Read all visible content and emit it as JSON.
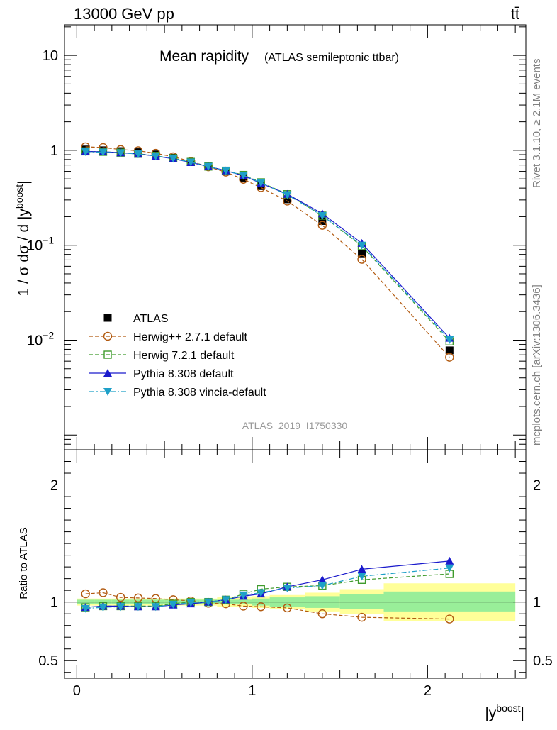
{
  "header": {
    "left": "13000 GeV pp",
    "right": "tt̄"
  },
  "side": {
    "rivet": "Rivet 3.1.10, ≥ 2.1M events",
    "mcplots": "mcplots.cern.ch [arXiv:1306.3436]"
  },
  "chart_data": [
    {
      "type": "line",
      "title": "Mean rapidity",
      "subtitle": "(ATLAS semileptonic ttbar)",
      "ylabel": "1 / σ dσ / d |y^boost|",
      "xlabel": "",
      "yscale": "log",
      "xlim": [
        -0.07,
        2.56
      ],
      "ylim": [
        0.0007,
        21
      ],
      "y_tick_labels": [
        "10",
        "1",
        "10^-1",
        "10^-2"
      ],
      "watermark": "ATLAS_2019_I1750330",
      "legend_position": "bottom-left",
      "x": [
        0.05,
        0.15,
        0.25,
        0.35,
        0.45,
        0.55,
        0.65,
        0.75,
        0.85,
        0.95,
        1.05,
        1.2,
        1.4,
        1.625,
        2.125
      ],
      "series": [
        {
          "name": "ATLAS",
          "color": "#000000",
          "marker": "square-filled",
          "line": "none",
          "values": [
            1.02,
            1.0,
            0.98,
            0.955,
            0.905,
            0.835,
            0.755,
            0.675,
            0.6,
            0.515,
            0.42,
            0.305,
            0.18,
            0.082,
            0.0078
          ]
        },
        {
          "name": "Herwig++ 2.7.1 default",
          "color": "#b25a10",
          "marker": "circle-open",
          "line": "dashed",
          "values": [
            1.09,
            1.07,
            1.02,
            0.99,
            0.93,
            0.855,
            0.765,
            0.67,
            0.59,
            0.495,
            0.405,
            0.292,
            0.162,
            0.071,
            0.0066
          ]
        },
        {
          "name": "Herwig 7.2.1 default",
          "color": "#3f9b2c",
          "marker": "square-open",
          "line": "dashed",
          "values": [
            0.975,
            0.965,
            0.945,
            0.92,
            0.875,
            0.825,
            0.755,
            0.675,
            0.61,
            0.55,
            0.46,
            0.345,
            0.205,
            0.098,
            0.0097
          ]
        },
        {
          "name": "Pythia 8.308 default",
          "color": "#1a1acc",
          "marker": "triangle-up-filled",
          "line": "solid",
          "values": [
            0.975,
            0.965,
            0.945,
            0.915,
            0.87,
            0.815,
            0.745,
            0.675,
            0.61,
            0.54,
            0.45,
            0.345,
            0.215,
            0.105,
            0.0105
          ]
        },
        {
          "name": "Pythia 8.308 vincia-default",
          "color": "#1ea0c8",
          "marker": "triangle-down-filled",
          "line": "dashdot",
          "values": [
            0.965,
            0.955,
            0.94,
            0.915,
            0.87,
            0.82,
            0.75,
            0.675,
            0.61,
            0.545,
            0.455,
            0.34,
            0.205,
            0.1,
            0.0101
          ]
        }
      ]
    },
    {
      "type": "line",
      "title": "",
      "ylabel": "Ratio to ATLAS",
      "xlabel": "|y^boost|",
      "xlim": [
        -0.07,
        2.56
      ],
      "ylim": [
        0.35,
        2.3
      ],
      "x_tick_labels": [
        "0",
        "1",
        "2"
      ],
      "y_tick_labels": [
        "2",
        "1",
        "0.5"
      ],
      "reference_line": 1,
      "bins": [
        [
          0.0,
          0.1
        ],
        [
          0.1,
          0.2
        ],
        [
          0.2,
          0.3
        ],
        [
          0.3,
          0.4
        ],
        [
          0.4,
          0.5
        ],
        [
          0.5,
          0.6
        ],
        [
          0.6,
          0.7
        ],
        [
          0.7,
          0.8
        ],
        [
          0.8,
          0.9
        ],
        [
          0.9,
          1.0
        ],
        [
          1.0,
          1.1
        ],
        [
          1.1,
          1.3
        ],
        [
          1.3,
          1.5
        ],
        [
          1.5,
          1.75
        ],
        [
          1.75,
          2.5
        ]
      ],
      "band_inner": [
        [
          0.98,
          1.02
        ],
        [
          0.98,
          1.02
        ],
        [
          0.98,
          1.02
        ],
        [
          0.98,
          1.02
        ],
        [
          0.98,
          1.02
        ],
        [
          0.98,
          1.02
        ],
        [
          0.98,
          1.02
        ],
        [
          0.98,
          1.02
        ],
        [
          0.98,
          1.02
        ],
        [
          0.98,
          1.02
        ],
        [
          0.97,
          1.03
        ],
        [
          0.96,
          1.04
        ],
        [
          0.95,
          1.05
        ],
        [
          0.94,
          1.07
        ],
        [
          0.92,
          1.09
        ]
      ],
      "band_outer": [
        [
          0.97,
          1.03
        ],
        [
          0.97,
          1.03
        ],
        [
          0.97,
          1.03
        ],
        [
          0.97,
          1.03
        ],
        [
          0.97,
          1.03
        ],
        [
          0.97,
          1.03
        ],
        [
          0.97,
          1.03
        ],
        [
          0.97,
          1.03
        ],
        [
          0.96,
          1.04
        ],
        [
          0.96,
          1.04
        ],
        [
          0.95,
          1.05
        ],
        [
          0.94,
          1.06
        ],
        [
          0.92,
          1.08
        ],
        [
          0.9,
          1.11
        ],
        [
          0.84,
          1.16
        ]
      ],
      "x": [
        0.05,
        0.15,
        0.25,
        0.35,
        0.45,
        0.55,
        0.65,
        0.75,
        0.85,
        0.95,
        1.05,
        1.2,
        1.4,
        1.625,
        2.125
      ],
      "series": [
        {
          "name": "Herwig++ 2.7.1 default",
          "color": "#b25a10",
          "marker": "circle-open",
          "line": "dashed",
          "values": [
            1.07,
            1.08,
            1.04,
            1.035,
            1.03,
            1.02,
            1.01,
            0.99,
            0.985,
            0.965,
            0.96,
            0.95,
            0.9,
            0.87,
            0.855
          ]
        },
        {
          "name": "Herwig 7.2.1 default",
          "color": "#3f9b2c",
          "marker": "square-open",
          "line": "dashed",
          "values": [
            0.955,
            0.965,
            0.965,
            0.965,
            0.965,
            0.985,
            1.0,
            1.0,
            1.02,
            1.07,
            1.11,
            1.13,
            1.14,
            1.19,
            1.24
          ]
        },
        {
          "name": "Pythia 8.308 default",
          "color": "#1a1acc",
          "marker": "triangle-up-filled",
          "line": "solid",
          "values": [
            0.955,
            0.965,
            0.965,
            0.96,
            0.96,
            0.975,
            0.985,
            1.0,
            1.02,
            1.05,
            1.07,
            1.13,
            1.19,
            1.28,
            1.35
          ]
        },
        {
          "name": "Pythia 8.308 vincia-default",
          "color": "#1ea0c8",
          "marker": "triangle-down-filled",
          "line": "dashdot",
          "values": [
            0.945,
            0.955,
            0.96,
            0.96,
            0.96,
            0.98,
            0.995,
            1.0,
            1.02,
            1.06,
            1.08,
            1.12,
            1.14,
            1.22,
            1.29
          ]
        }
      ]
    }
  ]
}
